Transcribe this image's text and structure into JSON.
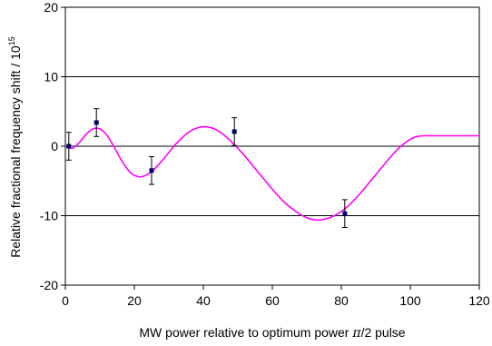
{
  "chart_data": {
    "type": "scatter",
    "xlabel_main": "MW power relative to optimum power ",
    "xlabel_symbol": "π",
    "xlabel_tail": "/2 pulse",
    "ylabel_main": "Relative fractional frequency shift / 10",
    "ylabel_exp": "15",
    "xlim": [
      0,
      120
    ],
    "ylim": [
      -20,
      20
    ],
    "x_ticks": [
      0,
      20,
      40,
      60,
      80,
      100,
      120
    ],
    "y_ticks": [
      -20,
      -10,
      0,
      10,
      20
    ],
    "gridlines_y": [
      -10,
      0,
      10
    ],
    "colors": {
      "markers": "#000066",
      "fit_curve": "#ff00ff",
      "grid": "#000000"
    },
    "series": [
      {
        "kind": "markers_with_error_bars",
        "x": [
          1,
          9,
          25,
          49,
          81
        ],
        "y": [
          0.0,
          3.4,
          -3.5,
          2.1,
          -9.7
        ],
        "error": [
          2.0,
          2.0,
          2.0,
          2.0,
          2.0
        ]
      },
      {
        "kind": "fit_curve",
        "x": [
          0,
          2,
          4,
          6,
          8,
          10,
          12,
          14,
          16,
          18,
          20,
          22,
          24,
          26,
          28,
          30,
          32,
          34,
          36,
          38,
          40,
          42,
          44,
          46,
          48,
          50,
          52,
          54,
          56,
          58,
          60,
          62,
          64,
          66,
          68,
          70,
          72,
          74,
          76,
          78,
          80,
          82,
          84,
          86,
          88,
          90,
          92,
          94,
          96,
          98,
          100,
          102,
          104,
          106,
          108,
          110,
          112,
          114,
          116,
          118,
          120
        ],
        "y": [
          0.0,
          -0.3,
          0.5,
          1.7,
          2.5,
          2.5,
          1.6,
          0.0,
          -1.8,
          -3.3,
          -4.2,
          -4.4,
          -4.0,
          -3.2,
          -2.1,
          -0.9,
          0.3,
          1.3,
          2.1,
          2.6,
          2.8,
          2.7,
          2.3,
          1.6,
          0.7,
          -0.3,
          -1.4,
          -2.6,
          -3.8,
          -5.0,
          -6.2,
          -7.3,
          -8.3,
          -9.1,
          -9.8,
          -10.3,
          -10.6,
          -10.6,
          -10.4,
          -10.0,
          -9.4,
          -8.6,
          -7.6,
          -6.5,
          -5.3,
          -4.1,
          -2.9,
          -1.7,
          -0.6,
          0.3,
          1.0,
          1.4,
          1.5,
          1.5,
          1.5,
          1.5,
          1.5,
          1.5,
          1.5,
          1.5,
          1.5
        ]
      }
    ]
  }
}
